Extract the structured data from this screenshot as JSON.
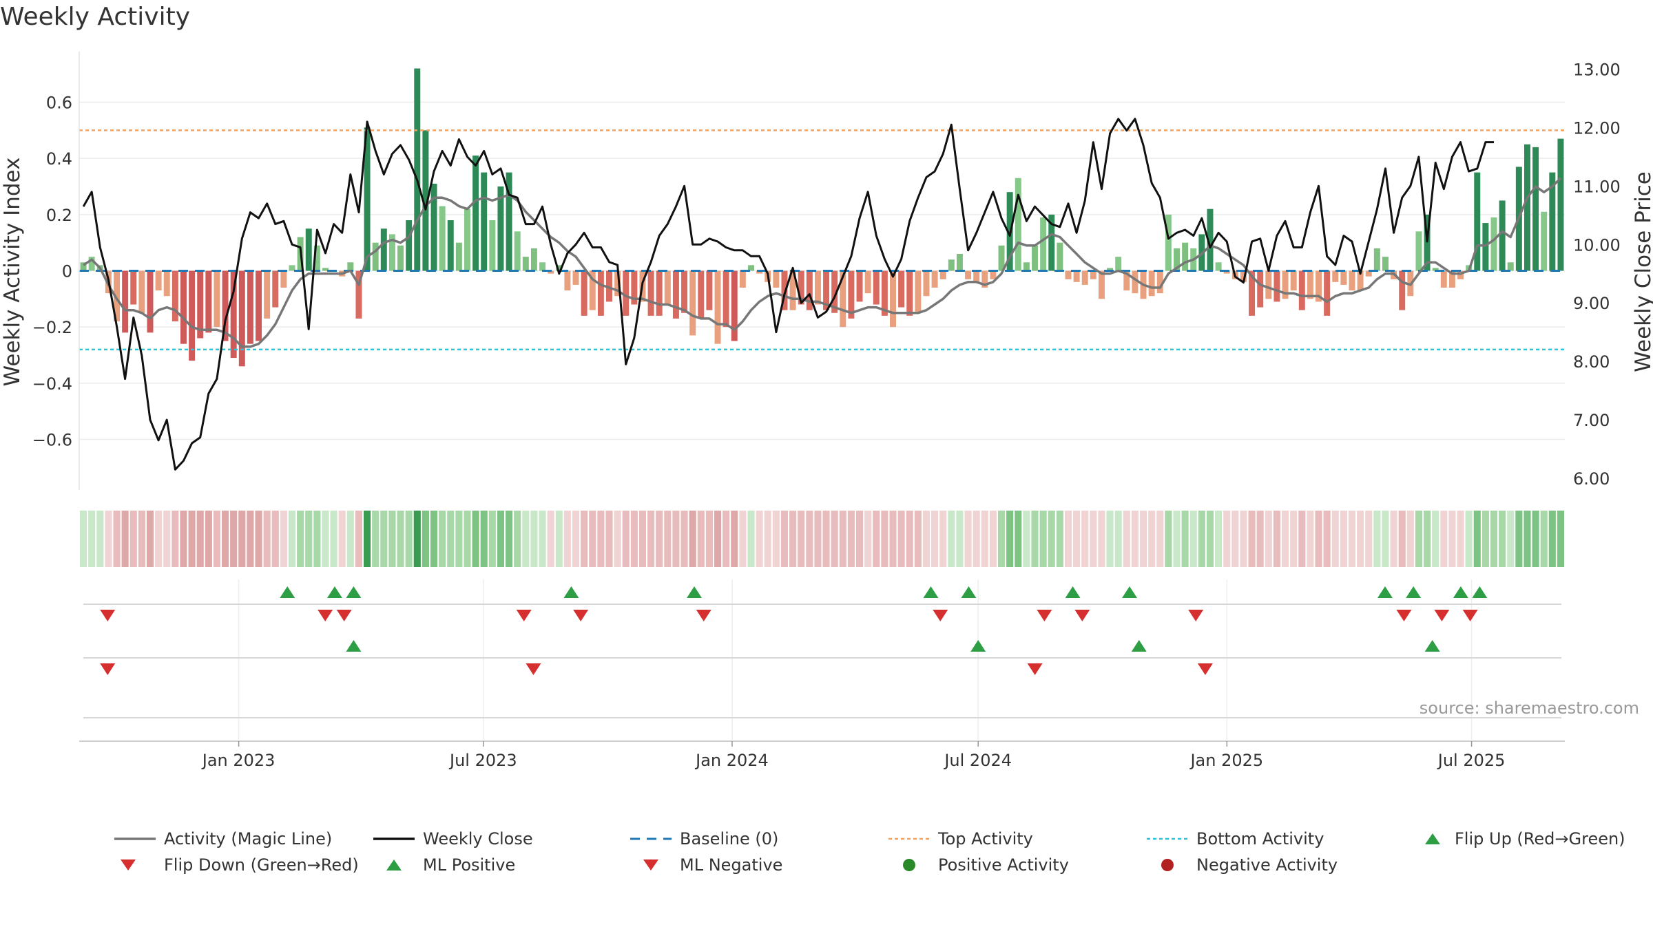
{
  "chart_data": {
    "type": "bar",
    "title": "Weekly Activity",
    "ylabel": "Weekly Activity Index",
    "y2label": "Weekly Close Price",
    "ylim": [
      -0.78,
      0.78
    ],
    "y2lim": [
      5.8,
      13.3
    ],
    "yticks": [
      -0.6,
      -0.4,
      -0.2,
      0,
      0.2,
      0.4,
      0.6
    ],
    "ytick_labels": [
      "−0.6",
      "−0.4",
      "−0.2",
      "0",
      "0.2",
      "0.4",
      "0.6"
    ],
    "y2ticks": [
      6,
      7,
      8,
      9,
      10,
      11,
      12,
      13
    ],
    "y2tick_labels": [
      "6.00",
      "7.00",
      "8.00",
      "9.00",
      "10.00",
      "11.00",
      "12.00",
      "13.00"
    ],
    "x_start": "2022-09-05",
    "x_end": "2025-09-08",
    "xticks": [
      "2023-01-01",
      "2023-07-01",
      "2024-01-01",
      "2024-07-01",
      "2025-01-01",
      "2025-07-01"
    ],
    "xtick_labels": [
      "Jan 2023",
      "Jul 2023",
      "Jan 2024",
      "Jul 2024",
      "Jan 2025",
      "Jul 2025"
    ],
    "top_activity": 0.5,
    "bottom_activity": -0.28,
    "baseline": 0,
    "activity_weekly": [
      0.03,
      0.05,
      0.02,
      -0.08,
      -0.18,
      -0.22,
      -0.12,
      -0.15,
      -0.22,
      -0.07,
      -0.09,
      -0.18,
      -0.26,
      -0.32,
      -0.24,
      -0.22,
      -0.2,
      -0.25,
      -0.31,
      -0.34,
      -0.26,
      -0.25,
      -0.17,
      -0.13,
      -0.06,
      0.02,
      0.12,
      0.15,
      0.09,
      0.01,
      0.0,
      -0.02,
      0.03,
      -0.17,
      0.51,
      0.1,
      0.15,
      0.13,
      0.09,
      0.18,
      0.72,
      0.5,
      0.31,
      0.23,
      0.18,
      0.1,
      0.22,
      0.41,
      0.35,
      0.18,
      0.3,
      0.35,
      0.14,
      0.05,
      0.08,
      0.03,
      -0.01,
      0.02,
      -0.07,
      -0.05,
      -0.16,
      -0.14,
      -0.16,
      -0.11,
      -0.09,
      -0.16,
      -0.12,
      -0.11,
      -0.16,
      -0.16,
      -0.12,
      -0.17,
      -0.15,
      -0.23,
      -0.17,
      -0.14,
      -0.26,
      -0.2,
      -0.25,
      -0.06,
      0.02,
      -0.01,
      -0.04,
      -0.06,
      -0.14,
      -0.14,
      -0.12,
      -0.14,
      -0.12,
      -0.14,
      -0.15,
      -0.2,
      -0.17,
      -0.11,
      -0.08,
      -0.12,
      -0.16,
      -0.2,
      -0.13,
      -0.16,
      -0.15,
      -0.09,
      -0.06,
      -0.03,
      0.04,
      0.06,
      -0.03,
      -0.04,
      -0.06,
      -0.03,
      0.09,
      0.28,
      0.33,
      0.03,
      0.09,
      0.19,
      0.2,
      0.1,
      -0.03,
      -0.04,
      -0.05,
      -0.03,
      -0.1,
      0.01,
      0.05,
      -0.07,
      -0.08,
      -0.1,
      -0.09,
      -0.08,
      0.2,
      0.08,
      0.1,
      0.08,
      0.13,
      0.22,
      0.03,
      -0.01,
      -0.03,
      -0.04,
      -0.16,
      -0.13,
      -0.1,
      -0.11,
      -0.1,
      -0.07,
      -0.14,
      -0.1,
      -0.11,
      -0.16,
      -0.04,
      -0.05,
      -0.07,
      -0.07,
      -0.02,
      0.08,
      0.05,
      -0.03,
      -0.14,
      -0.09,
      0.14,
      0.2,
      0.01,
      -0.06,
      -0.06,
      -0.03,
      0.02,
      0.35,
      0.17,
      0.19,
      0.25,
      0.03,
      0.37,
      0.45,
      0.44,
      0.21,
      0.35,
      0.47
    ],
    "magic_line": [
      0.02,
      0.04,
      0.01,
      -0.05,
      -0.1,
      -0.14,
      -0.14,
      -0.15,
      -0.17,
      -0.14,
      -0.13,
      -0.14,
      -0.17,
      -0.2,
      -0.21,
      -0.21,
      -0.21,
      -0.22,
      -0.24,
      -0.27,
      -0.27,
      -0.26,
      -0.23,
      -0.19,
      -0.13,
      -0.07,
      -0.03,
      -0.01,
      -0.01,
      -0.01,
      -0.01,
      -0.01,
      0.0,
      -0.05,
      0.05,
      0.07,
      0.1,
      0.11,
      0.1,
      0.12,
      0.18,
      0.23,
      0.26,
      0.26,
      0.25,
      0.23,
      0.22,
      0.25,
      0.26,
      0.25,
      0.26,
      0.27,
      0.25,
      0.21,
      0.18,
      0.15,
      0.12,
      0.1,
      0.07,
      0.05,
      0.01,
      -0.03,
      -0.05,
      -0.06,
      -0.07,
      -0.09,
      -0.1,
      -0.1,
      -0.11,
      -0.12,
      -0.12,
      -0.13,
      -0.14,
      -0.16,
      -0.17,
      -0.17,
      -0.19,
      -0.19,
      -0.21,
      -0.18,
      -0.14,
      -0.11,
      -0.09,
      -0.08,
      -0.09,
      -0.1,
      -0.1,
      -0.11,
      -0.11,
      -0.12,
      -0.13,
      -0.14,
      -0.15,
      -0.14,
      -0.13,
      -0.13,
      -0.14,
      -0.15,
      -0.15,
      -0.15,
      -0.15,
      -0.14,
      -0.12,
      -0.1,
      -0.07,
      -0.05,
      -0.04,
      -0.04,
      -0.05,
      -0.04,
      -0.01,
      0.05,
      0.1,
      0.09,
      0.09,
      0.11,
      0.13,
      0.12,
      0.09,
      0.06,
      0.03,
      0.01,
      -0.01,
      -0.01,
      0.0,
      -0.01,
      -0.03,
      -0.05,
      -0.06,
      -0.06,
      -0.01,
      0.01,
      0.03,
      0.04,
      0.06,
      0.09,
      0.08,
      0.06,
      0.04,
      0.02,
      -0.02,
      -0.05,
      -0.06,
      -0.07,
      -0.08,
      -0.08,
      -0.09,
      -0.09,
      -0.09,
      -0.11,
      -0.09,
      -0.08,
      -0.08,
      -0.07,
      -0.06,
      -0.03,
      -0.01,
      -0.01,
      -0.04,
      -0.05,
      -0.01,
      0.03,
      0.03,
      0.01,
      -0.01,
      -0.01,
      0.0,
      0.09,
      0.09,
      0.11,
      0.14,
      0.12,
      0.19,
      0.26,
      0.3,
      0.28,
      0.3,
      0.33
    ],
    "weekly_close": [
      10.65,
      10.9,
      9.95,
      9.4,
      8.6,
      7.7,
      8.75,
      8.1,
      7.0,
      6.65,
      7.0,
      6.15,
      6.3,
      6.6,
      6.7,
      7.45,
      7.7,
      8.7,
      9.2,
      10.1,
      10.55,
      10.45,
      10.7,
      10.35,
      10.4,
      10.0,
      9.95,
      8.55,
      10.25,
      9.85,
      10.35,
      10.2,
      11.2,
      10.55,
      12.1,
      11.6,
      11.2,
      11.55,
      11.7,
      11.45,
      11.1,
      10.6,
      11.25,
      11.6,
      11.35,
      11.8,
      11.5,
      11.35,
      11.6,
      11.2,
      11.3,
      10.85,
      10.8,
      10.35,
      10.35,
      10.65,
      10.0,
      9.5,
      9.85,
      10.0,
      10.2,
      9.95,
      9.95,
      9.7,
      9.65,
      7.95,
      8.4,
      9.35,
      9.7,
      10.15,
      10.35,
      10.65,
      11.0,
      10.0,
      10.0,
      10.1,
      10.05,
      9.95,
      9.9,
      9.9,
      9.8,
      9.8,
      9.5,
      8.5,
      9.15,
      9.6,
      9.0,
      9.15,
      8.75,
      8.85,
      9.1,
      9.45,
      9.8,
      10.45,
      10.9,
      10.15,
      9.75,
      9.45,
      9.75,
      10.4,
      10.8,
      11.15,
      11.25,
      11.55,
      12.05,
      10.95,
      9.9,
      10.2,
      10.55,
      10.9,
      10.45,
      10.15,
      10.85,
      10.4,
      10.65,
      10.5,
      10.35,
      10.3,
      10.7,
      10.2,
      10.75,
      11.75,
      10.95,
      11.9,
      12.15,
      11.95,
      12.15,
      11.7,
      11.05,
      10.8,
      10.1,
      10.2,
      10.25,
      10.15,
      10.45,
      9.95,
      10.2,
      10.05,
      9.45,
      9.35,
      10.05,
      10.1,
      9.55,
      10.15,
      10.4,
      9.95,
      9.95,
      10.55,
      11.0,
      9.8,
      9.65,
      10.15,
      10.05,
      9.5,
      10.05,
      10.6,
      11.3,
      10.2,
      10.8,
      11.0,
      11.5,
      10.05,
      11.4,
      10.95,
      11.5,
      11.75,
      11.25,
      11.3,
      11.75,
      11.75
    ]
  },
  "heatmap_label": "",
  "signals": {
    "flip_up": [
      "2023-02-06",
      "2023-03-13",
      "2023-03-27",
      "2023-09-04",
      "2023-12-04",
      "2024-05-27",
      "2024-06-24",
      "2024-09-09",
      "2024-10-21",
      "2025-04-28",
      "2025-05-19",
      "2025-06-23",
      "2025-07-07"
    ],
    "flip_down": [
      "2022-09-26",
      "2023-03-06",
      "2023-03-20",
      "2023-07-31",
      "2023-09-11",
      "2023-12-11",
      "2024-06-03",
      "2024-08-19",
      "2024-09-16",
      "2024-12-09",
      "2025-05-12",
      "2025-06-09",
      "2025-06-30"
    ],
    "ml_positive": [
      "2023-03-27",
      "2024-07-01",
      "2024-10-28",
      "2025-06-02"
    ],
    "ml_negative": [
      "2022-09-26",
      "2023-08-07",
      "2024-08-12",
      "2024-12-16"
    ]
  },
  "source": "source: sharemaestro.com",
  "legend": {
    "activity": "Activity (Magic Line)",
    "weekly_close": "Weekly Close",
    "baseline": "Baseline (0)",
    "top": "Top Activity",
    "bottom": "Bottom Activity",
    "flip_up": "Flip Up (Red→Green)",
    "flip_down": "Flip Down (Green→Red)",
    "ml_pos": "ML Positive",
    "ml_neg": "ML Negative",
    "pos_act": "Positive Activity",
    "neg_act": "Negative Activity"
  },
  "colors": {
    "magic_line": "#777777",
    "close": "#111111",
    "baseline": "#1f77b4",
    "top": "#f4a261",
    "bottom": "#2ec4d6",
    "up": "#2e9e44",
    "down": "#d62f2f",
    "pos_dot": "#2a8a2a",
    "neg_dot": "#b22222"
  }
}
